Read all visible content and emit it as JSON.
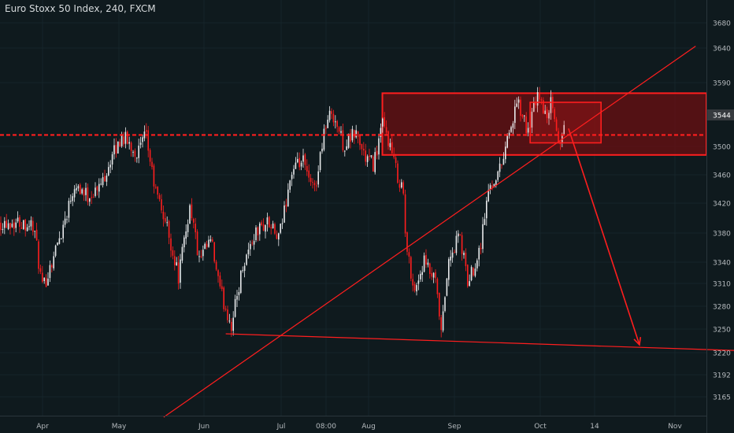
{
  "header": {
    "title": "Euro Stoxx 50 Index, 240, FXCM"
  },
  "chart_data": {
    "type": "candlestick",
    "symbol": "Euro Stoxx 50 Index",
    "timeframe": "240",
    "source": "FXCM",
    "y_ticks": [
      3680,
      3640,
      3590,
      3544,
      3500,
      3460,
      3420,
      3380,
      3340,
      3310,
      3280,
      3250,
      3220,
      3192,
      3165
    ],
    "x_ticks": [
      "Apr",
      "May",
      "Jun",
      "Jul",
      "08:00",
      "Aug",
      "Sep",
      "Oct",
      "14",
      "Nov"
    ],
    "last_price": 3544,
    "price_path": [
      {
        "t": "Mar 25",
        "price": 3395
      },
      {
        "t": "Mar 29",
        "price": 3390
      },
      {
        "t": "Apr 01",
        "price": 3300
      },
      {
        "t": "Apr 04",
        "price": 3340
      },
      {
        "t": "Apr 08",
        "price": 3390
      },
      {
        "t": "Apr 12",
        "price": 3450
      },
      {
        "t": "Apr 16",
        "price": 3430
      },
      {
        "t": "Apr 20",
        "price": 3440
      },
      {
        "t": "Apr 24",
        "price": 3480
      },
      {
        "t": "Apr 28",
        "price": 3515
      },
      {
        "t": "May 03",
        "price": 3490
      },
      {
        "t": "May 06",
        "price": 3515
      },
      {
        "t": "May 09",
        "price": 3440
      },
      {
        "t": "May 13",
        "price": 3390
      },
      {
        "t": "May 17",
        "price": 3320
      },
      {
        "t": "May 21",
        "price": 3420
      },
      {
        "t": "May 24",
        "price": 3340
      },
      {
        "t": "May 28",
        "price": 3370
      },
      {
        "t": "May 31",
        "price": 3300
      },
      {
        "t": "Jun 04",
        "price": 3255
      },
      {
        "t": "Jun 08",
        "price": 3340
      },
      {
        "t": "Jun 12",
        "price": 3380
      },
      {
        "t": "Jun 16",
        "price": 3395
      },
      {
        "t": "Jun 20",
        "price": 3370
      },
      {
        "t": "Jun 24",
        "price": 3460
      },
      {
        "t": "Jun 28",
        "price": 3480
      },
      {
        "t": "Jul 01",
        "price": 3440
      },
      {
        "t": "Jul 03",
        "price": 3455
      },
      {
        "t": "Jul 05",
        "price": 3520
      },
      {
        "t": "Jul 08",
        "price": 3550
      },
      {
        "t": "Jul 12",
        "price": 3500
      },
      {
        "t": "Jul 16",
        "price": 3520
      },
      {
        "t": "Jul 19",
        "price": 3485
      },
      {
        "t": "Jul 22",
        "price": 3475
      },
      {
        "t": "Jul 25",
        "price": 3530
      },
      {
        "t": "Jul 27",
        "price": 3510
      },
      {
        "t": "Jul 30",
        "price": 3460
      },
      {
        "t": "Aug 01",
        "price": 3440
      },
      {
        "t": "Aug 02",
        "price": 3360
      },
      {
        "t": "Aug 05",
        "price": 3300
      },
      {
        "t": "Aug 08",
        "price": 3340
      },
      {
        "t": "Aug 12",
        "price": 3310
      },
      {
        "t": "Aug 14",
        "price": 3240
      },
      {
        "t": "Aug 16",
        "price": 3330
      },
      {
        "t": "Aug 20",
        "price": 3380
      },
      {
        "t": "Aug 23",
        "price": 3310
      },
      {
        "t": "Aug 27",
        "price": 3360
      },
      {
        "t": "Aug 30",
        "price": 3440
      },
      {
        "t": "Sep 03",
        "price": 3470
      },
      {
        "t": "Sep 05",
        "price": 3510
      },
      {
        "t": "Sep 09",
        "price": 3560
      },
      {
        "t": "Sep 12",
        "price": 3520
      },
      {
        "t": "Sep 16",
        "price": 3575
      },
      {
        "t": "Sep 18",
        "price": 3540
      },
      {
        "t": "Sep 20",
        "price": 3560
      },
      {
        "t": "Sep 23",
        "price": 3500
      },
      {
        "t": "Sep 25",
        "price": 3544
      }
    ],
    "annotations": {
      "resistance_line_price": 3516,
      "supply_zone": {
        "from_price": 3488,
        "to_price": 3575,
        "from_date": "Jul 25"
      },
      "consolidation_box": {
        "from_price": 3505,
        "to_price": 3562,
        "from_date": "Sep 13",
        "to_date": "Oct 07"
      },
      "rising_trendline": [
        {
          "date": "May 12",
          "price": 3140
        },
        {
          "date": "Nov 08",
          "price": 3643
        }
      ],
      "falling_lower_line": [
        {
          "date": "Jun 02",
          "price": 3244
        },
        {
          "date": "Nov 28",
          "price": 3222
        }
      ],
      "projection_arrow": [
        {
          "date": "Sep 26",
          "price": 3525
        },
        {
          "date": "Oct 20",
          "price": 3230
        }
      ]
    },
    "grid": true,
    "colors": {
      "background": "#0f1a1e",
      "up_candle": "#e8eaec",
      "down_candle": "#ff1e1e",
      "drawing": "#ff1e1e",
      "zone_fill": "#6b0f12",
      "axis_text": "#b4b9bd",
      "price_tag": "#363a3e"
    }
  }
}
